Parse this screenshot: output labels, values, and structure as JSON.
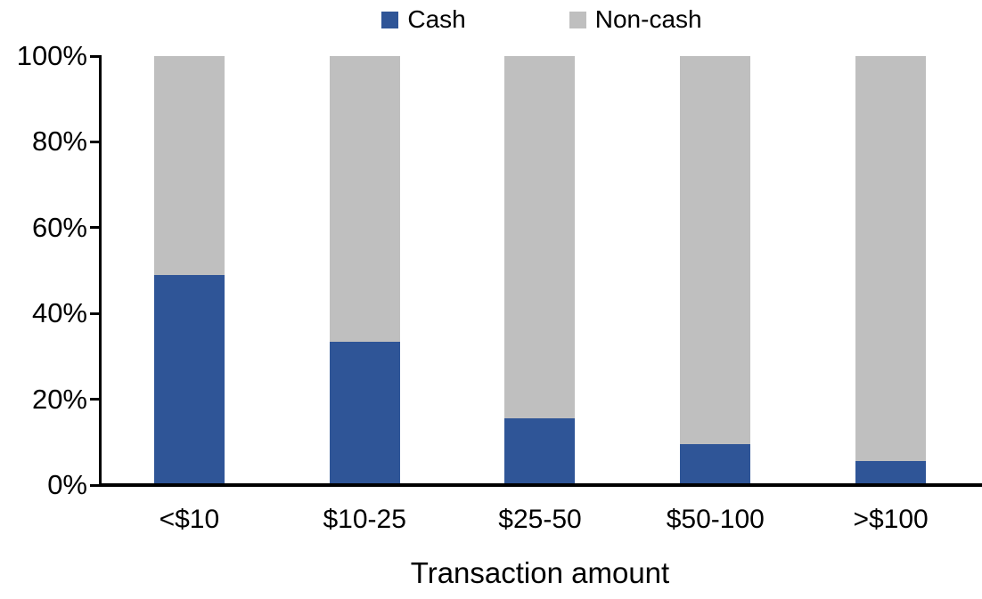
{
  "chart_data": {
    "type": "bar",
    "variant": "stacked-100-percent-column",
    "title": "",
    "xlabel": "Transaction amount",
    "ylabel": "",
    "categories": [
      "<$10",
      "$10-25",
      "$25-50",
      "$50-100",
      ">$100"
    ],
    "series": [
      {
        "name": "Cash",
        "color": "#2F5597",
        "values": [
          49,
          33.5,
          15.5,
          9.5,
          5.5
        ]
      },
      {
        "name": "Non-cash",
        "color": "#BFBFBF",
        "values": [
          51,
          66.5,
          84.5,
          90.5,
          94.5
        ]
      }
    ],
    "ylim": [
      0,
      100
    ],
    "yticks": [
      {
        "value": 0,
        "label": "0%"
      },
      {
        "value": 20,
        "label": "20%"
      },
      {
        "value": 40,
        "label": "40%"
      },
      {
        "value": 60,
        "label": "60%"
      },
      {
        "value": 80,
        "label": "80%"
      },
      {
        "value": 100,
        "label": "100%"
      }
    ],
    "legend_position": "top",
    "grid": false,
    "axis_color": "#000000",
    "background_color": "#FFFFFF"
  }
}
